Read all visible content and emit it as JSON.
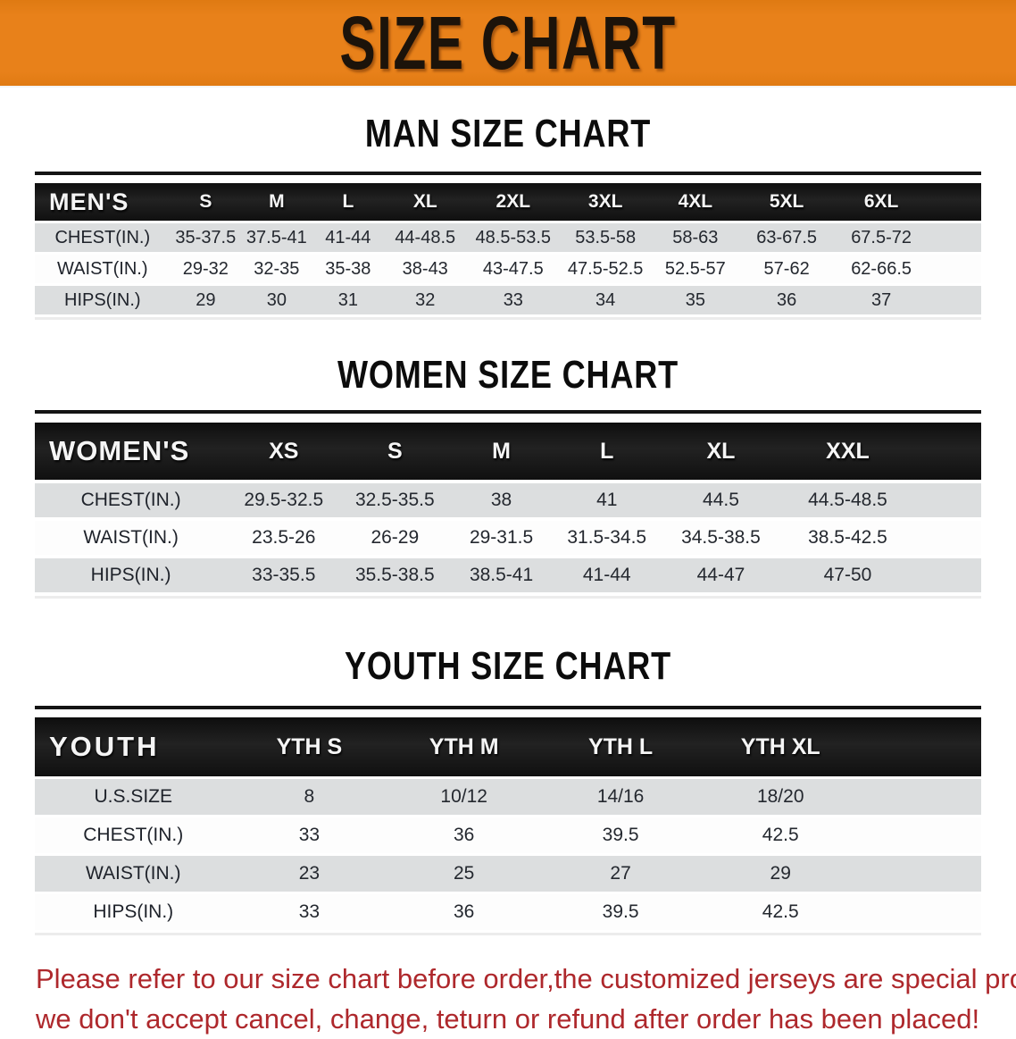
{
  "banner": {
    "title": "SIZE CHART"
  },
  "colors": {
    "accent": "#e8811a",
    "header_bar": "#181818",
    "row_gray": "#dcdedf",
    "footer_red": "#ae282c"
  },
  "sections": [
    {
      "heading": "MAN SIZE CHART",
      "table": {
        "header_label": "MEN'S",
        "sizes": [
          "S",
          "M",
          "L",
          "XL",
          "2XL",
          "3XL",
          "4XL",
          "5XL",
          "6XL"
        ],
        "rows": [
          {
            "label": "CHEST(IN.)",
            "values": [
              "35-37.5",
              "37.5-41",
              "41-44",
              "44-48.5",
              "48.5-53.5",
              "53.5-58",
              "58-63",
              "63-67.5",
              "67.5-72"
            ]
          },
          {
            "label": "WAIST(IN.)",
            "values": [
              "29-32",
              "32-35",
              "35-38",
              "38-43",
              "43-47.5",
              "47.5-52.5",
              "52.5-57",
              "57-62",
              "62-66.5"
            ]
          },
          {
            "label": "HIPS(IN.)",
            "values": [
              "29",
              "30",
              "31",
              "32",
              "33",
              "34",
              "35",
              "36",
              "37"
            ]
          }
        ]
      }
    },
    {
      "heading": "WOMEN SIZE CHART",
      "table": {
        "header_label": "WOMEN'S",
        "sizes": [
          "XS",
          "S",
          "M",
          "L",
          "XL",
          "XXL"
        ],
        "rows": [
          {
            "label": "CHEST(IN.)",
            "values": [
              "29.5-32.5",
              "32.5-35.5",
              "38",
              "41",
              "44.5",
              "44.5-48.5"
            ]
          },
          {
            "label": "WAIST(IN.)",
            "values": [
              "23.5-26",
              "26-29",
              "29-31.5",
              "31.5-34.5",
              "34.5-38.5",
              "38.5-42.5"
            ]
          },
          {
            "label": "HIPS(IN.)",
            "values": [
              "33-35.5",
              "35.5-38.5",
              "38.5-41",
              "41-44",
              "44-47",
              "47-50"
            ]
          }
        ]
      }
    },
    {
      "heading": "YOUTH SIZE CHART",
      "table": {
        "header_label": "YOUTH",
        "sizes": [
          "YTH S",
          "YTH M",
          "YTH L",
          "YTH XL"
        ],
        "rows": [
          {
            "label": "U.S.SIZE",
            "values": [
              "8",
              "10/12",
              "14/16",
              "18/20"
            ]
          },
          {
            "label": "CHEST(IN.)",
            "values": [
              "33",
              "36",
              "39.5",
              "42.5"
            ]
          },
          {
            "label": "WAIST(IN.)",
            "values": [
              "23",
              "25",
              "27",
              "29"
            ]
          },
          {
            "label": "HIPS(IN.)",
            "values": [
              "33",
              "36",
              "39.5",
              "42.5"
            ]
          }
        ]
      }
    }
  ],
  "footer": {
    "line1": "Please refer to our size chart before order,the customized jerseys are special products,",
    "line2": "we don't accept cancel, change, teturn or refund after order has been placed!"
  }
}
